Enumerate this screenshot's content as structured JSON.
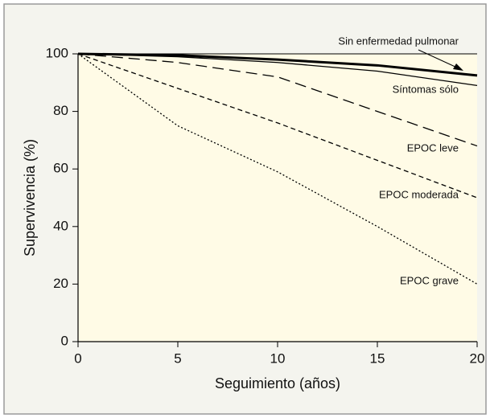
{
  "chart_data": {
    "type": "line",
    "x_label": "Seguimiento (años)",
    "y_label": "Supervivencia (%)",
    "x": [
      0,
      5,
      10,
      15,
      20
    ],
    "series": [
      {
        "name": "Sin enfermedad pulmonar",
        "color": "#000000",
        "style": "solid",
        "width": 3,
        "values": [
          100,
          99.5,
          98,
          96,
          92.5
        ]
      },
      {
        "name": "Síntomas sólo",
        "color": "#000000",
        "style": "solid",
        "width": 1.3,
        "values": [
          100,
          99,
          97,
          94,
          89
        ]
      },
      {
        "name": "EPOC leve",
        "color": "#000000",
        "style": "long-dash",
        "width": 1.3,
        "values": [
          100,
          97,
          92,
          80,
          68
        ]
      },
      {
        "name": "EPOC moderada",
        "color": "#000000",
        "style": "dash",
        "width": 1.3,
        "values": [
          100,
          88,
          76,
          63,
          50
        ]
      },
      {
        "name": "EPOC grave",
        "color": "#000000",
        "style": "dotted",
        "width": 1.3,
        "values": [
          100,
          75,
          59,
          40,
          20
        ]
      }
    ],
    "xlim": [
      0,
      20
    ],
    "xticks": [
      0,
      5,
      10,
      15,
      20
    ],
    "ylim": [
      0,
      100
    ],
    "yticks": [
      0,
      20,
      40,
      60,
      80,
      100
    ]
  }
}
